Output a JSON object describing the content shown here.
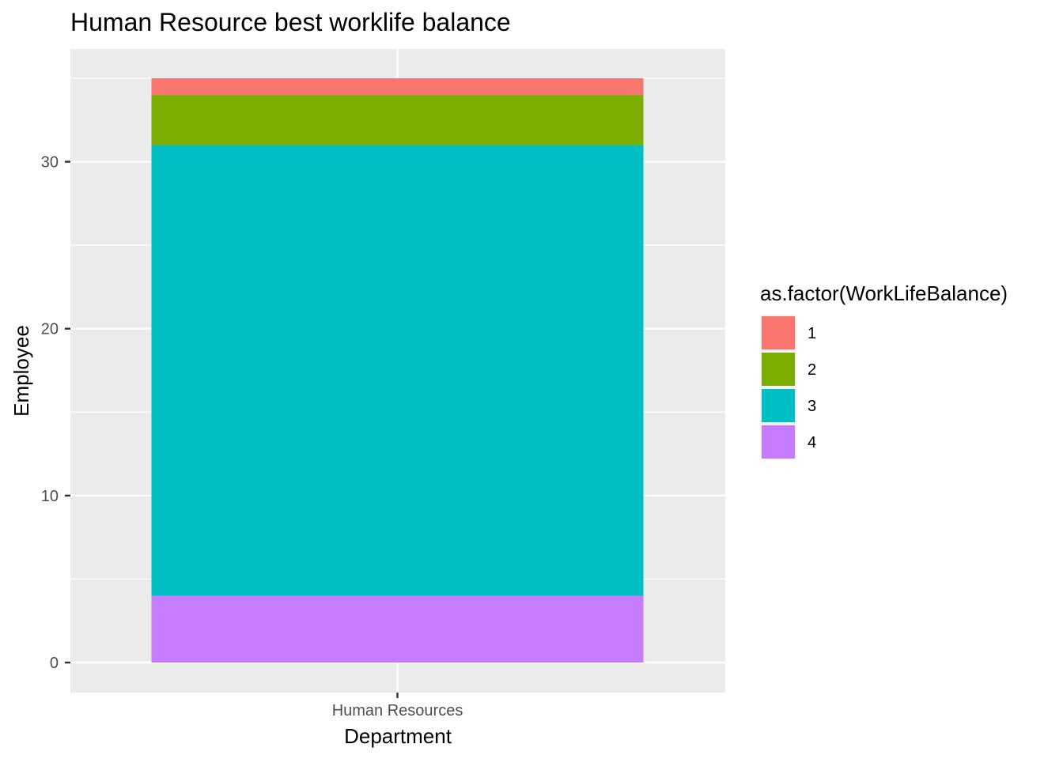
{
  "chart_data": {
    "type": "bar",
    "stacked": true,
    "title": "Human Resource best worklife balance",
    "xlabel": "Department",
    "ylabel": "Employee",
    "categories": [
      "Human Resources"
    ],
    "ylim": [
      0,
      35
    ],
    "yticks": [
      0,
      10,
      20,
      30
    ],
    "grid": true,
    "legend": {
      "title": "as.factor(WorkLifeBalance)",
      "placement": "right"
    },
    "series": [
      {
        "name": "1",
        "values": [
          1
        ],
        "color": "#F8766D"
      },
      {
        "name": "2",
        "values": [
          3
        ],
        "color": "#7CAE00"
      },
      {
        "name": "3",
        "values": [
          27
        ],
        "color": "#00BFC4"
      },
      {
        "name": "4",
        "values": [
          4
        ],
        "color": "#C77CFF"
      }
    ],
    "stack_order_bottom_to_top": [
      "4",
      "3",
      "2",
      "1"
    ],
    "colors": {
      "panel_background": "#EBEBEB",
      "gridline": "#FFFFFF",
      "tick_text": "#4D4D4D"
    }
  }
}
